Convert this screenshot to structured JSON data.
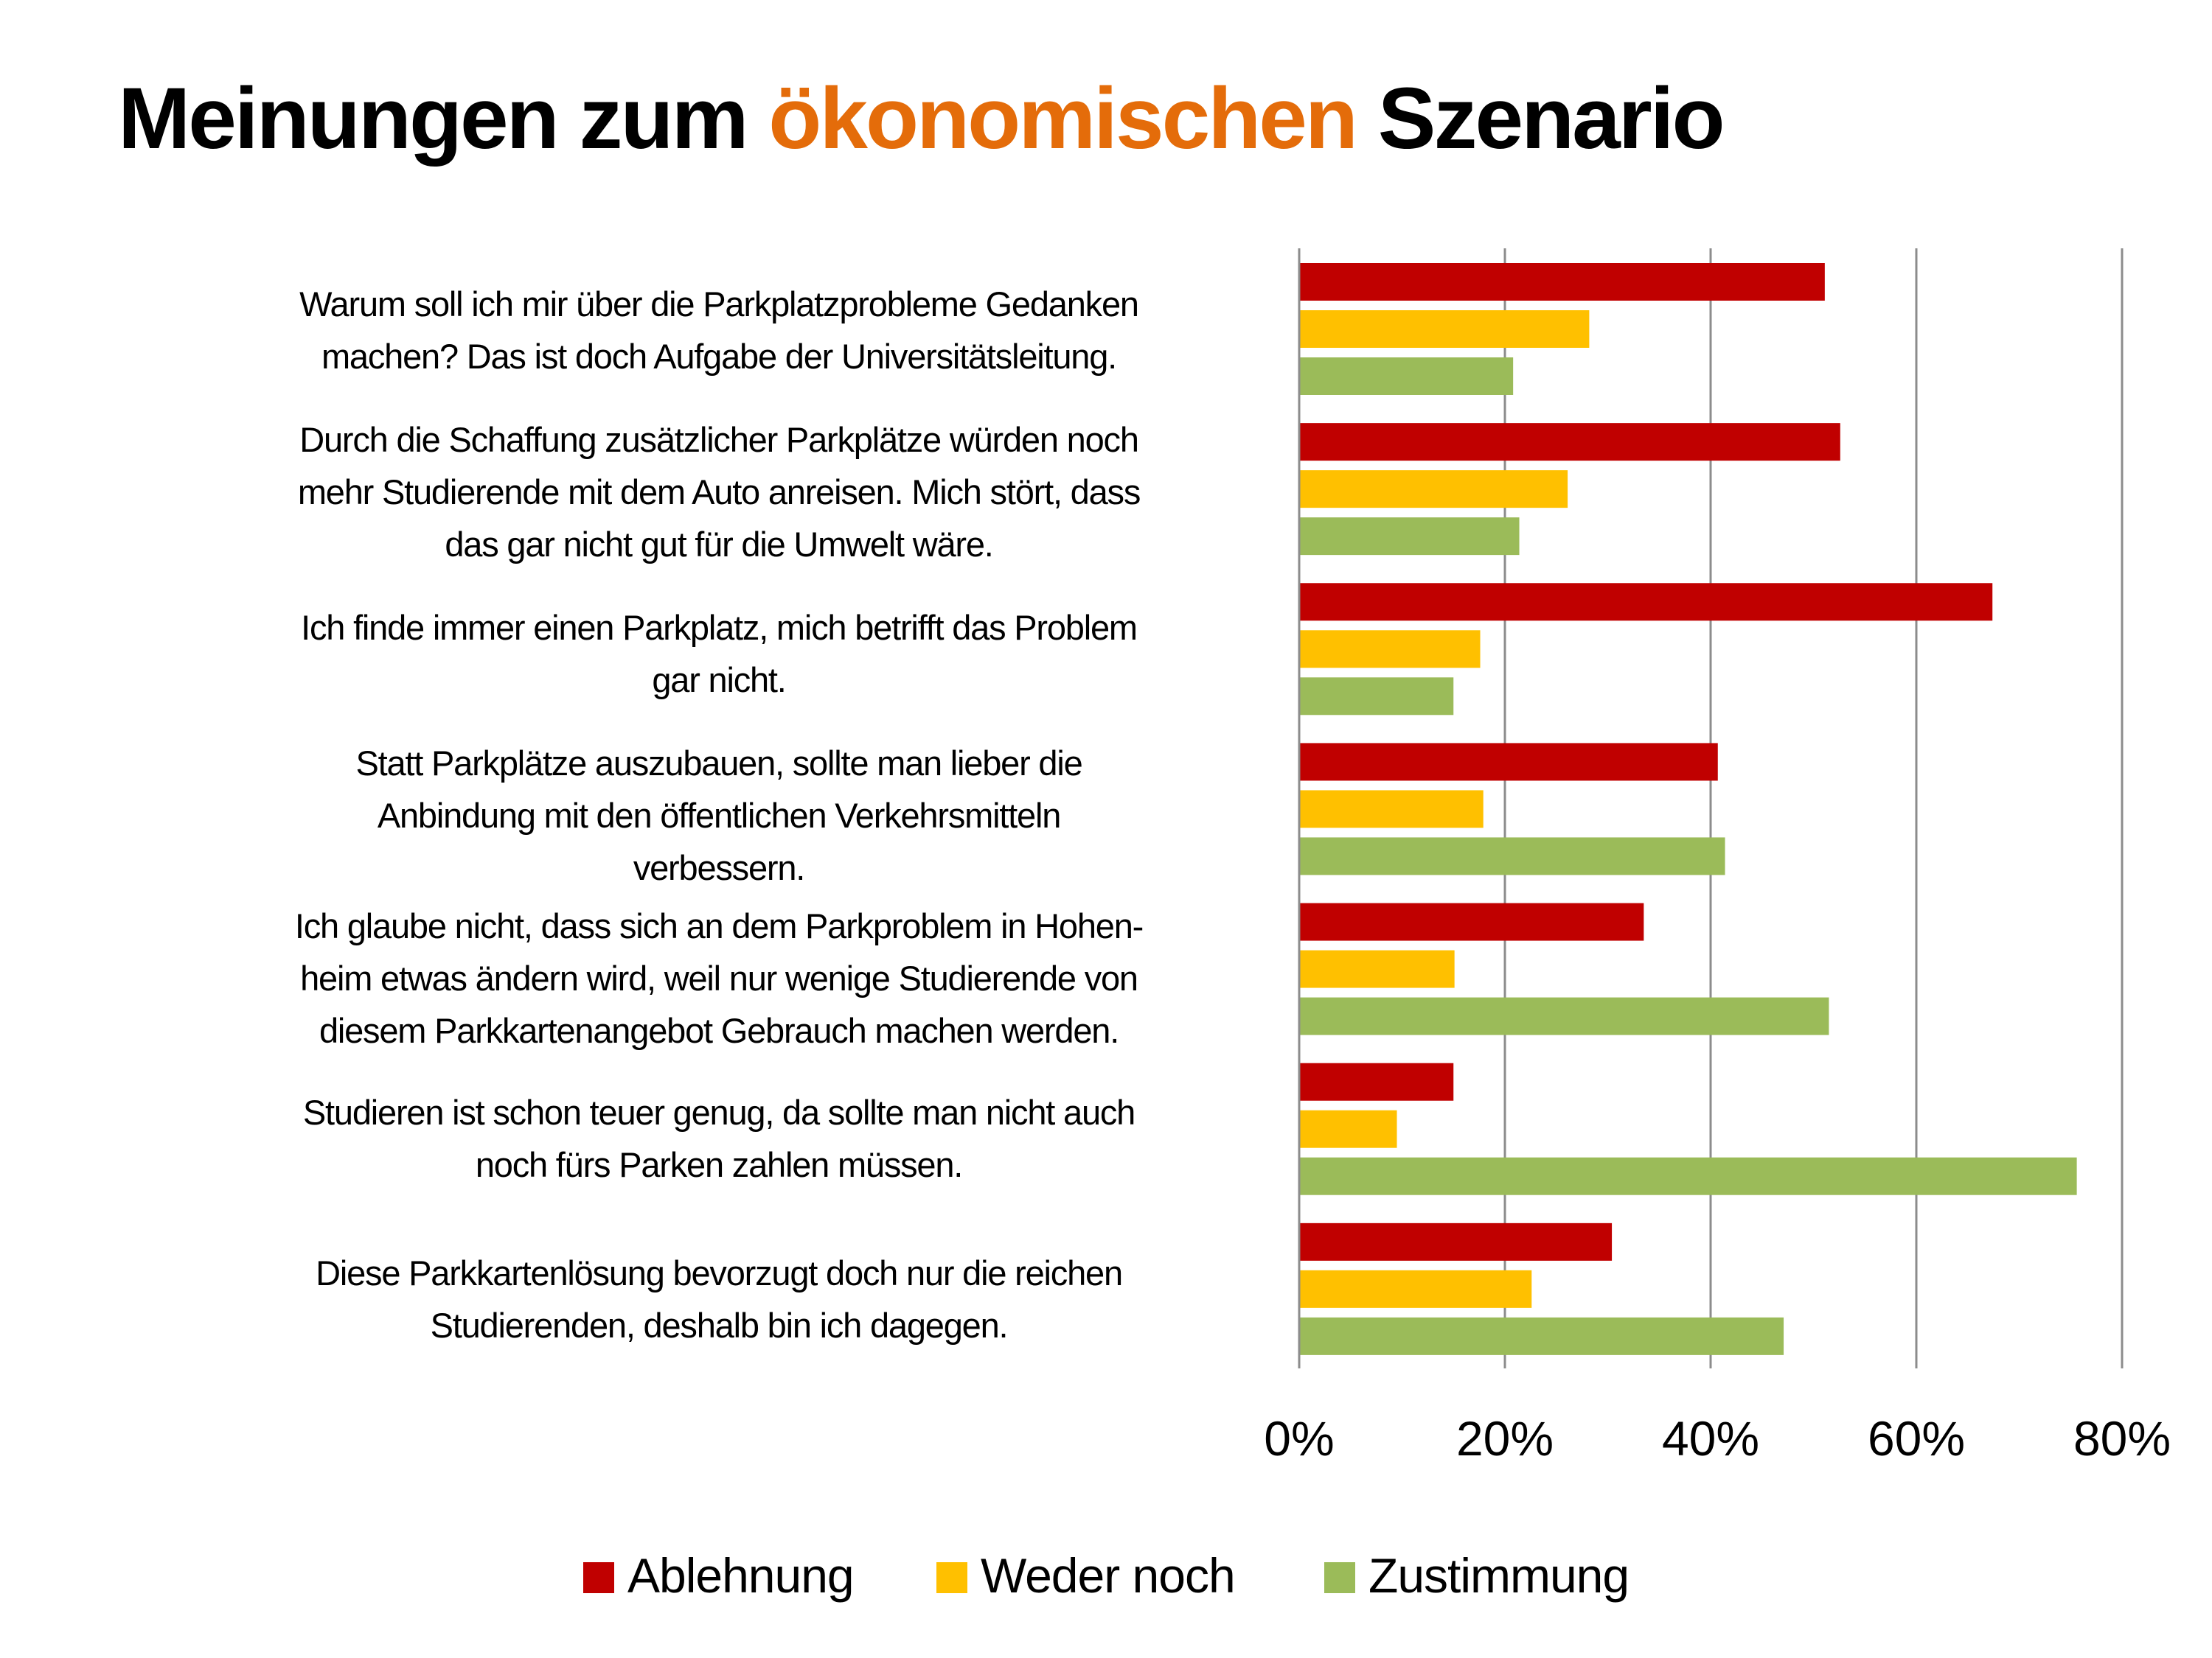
{
  "title": {
    "part1": "Meinungen zum ",
    "accent": "ökonomischen",
    "part2": " Szenario",
    "accent_color": "#E46C0A"
  },
  "chart_data": {
    "type": "bar",
    "orientation": "horizontal",
    "title": "Meinungen zum ökonomischen Szenario",
    "xlabel": "",
    "ylabel": "",
    "xlim": [
      0,
      80
    ],
    "x_ticks": [
      0,
      20,
      40,
      60,
      80
    ],
    "x_tick_labels": [
      "0%",
      "20%",
      "40%",
      "60%",
      "80%"
    ],
    "grid": true,
    "legend_position": "bottom",
    "categories": [
      {
        "lines": [
          "Warum soll ich mir über die Parkplatzprobleme Gedanken",
          "machen? Das ist doch Aufgabe der Universitätsleitung."
        ]
      },
      {
        "lines": [
          "Durch die Schaffung zusätzlicher Parkplätze würden noch",
          "mehr Studierende mit dem Auto anreisen. Mich stört, dass",
          "das gar nicht gut für die Umwelt wäre."
        ]
      },
      {
        "lines": [
          "Ich finde immer einen Parkplatz, mich betrifft das Problem",
          "gar nicht."
        ]
      },
      {
        "lines": [
          "Statt Parkplätze auszubauen, sollte man lieber die",
          "Anbindung mit den öffentlichen Verkehrsmitteln",
          "verbessern."
        ]
      },
      {
        "lines": [
          "Ich glaube nicht, dass sich an dem Parkproblem in Hohen-",
          "heim etwas ändern wird, weil nur wenige Studierende von",
          "diesem Parkkartenangebot Gebrauch machen werden."
        ]
      },
      {
        "lines": [
          "Studieren ist schon teuer genug, da sollte man nicht auch",
          "noch fürs Parken zahlen müssen."
        ]
      },
      {
        "lines": [
          "Diese Parkkartenlösung bevorzugt doch nur die reichen",
          "Studierenden, deshalb bin ich dagegen."
        ]
      }
    ],
    "series": [
      {
        "name": "Ablehnung",
        "color": "#C00000",
        "values": [
          51.1,
          52.6,
          67.4,
          40.7,
          33.5,
          15.0,
          30.4
        ]
      },
      {
        "name": "Weder noch",
        "color": "#FFC000",
        "values": [
          28.2,
          26.1,
          17.6,
          17.9,
          15.1,
          9.5,
          22.6
        ]
      },
      {
        "name": "Zustimmung",
        "color": "#9BBB59",
        "values": [
          20.8,
          21.4,
          15.0,
          41.4,
          51.5,
          75.6,
          47.1
        ]
      }
    ]
  }
}
